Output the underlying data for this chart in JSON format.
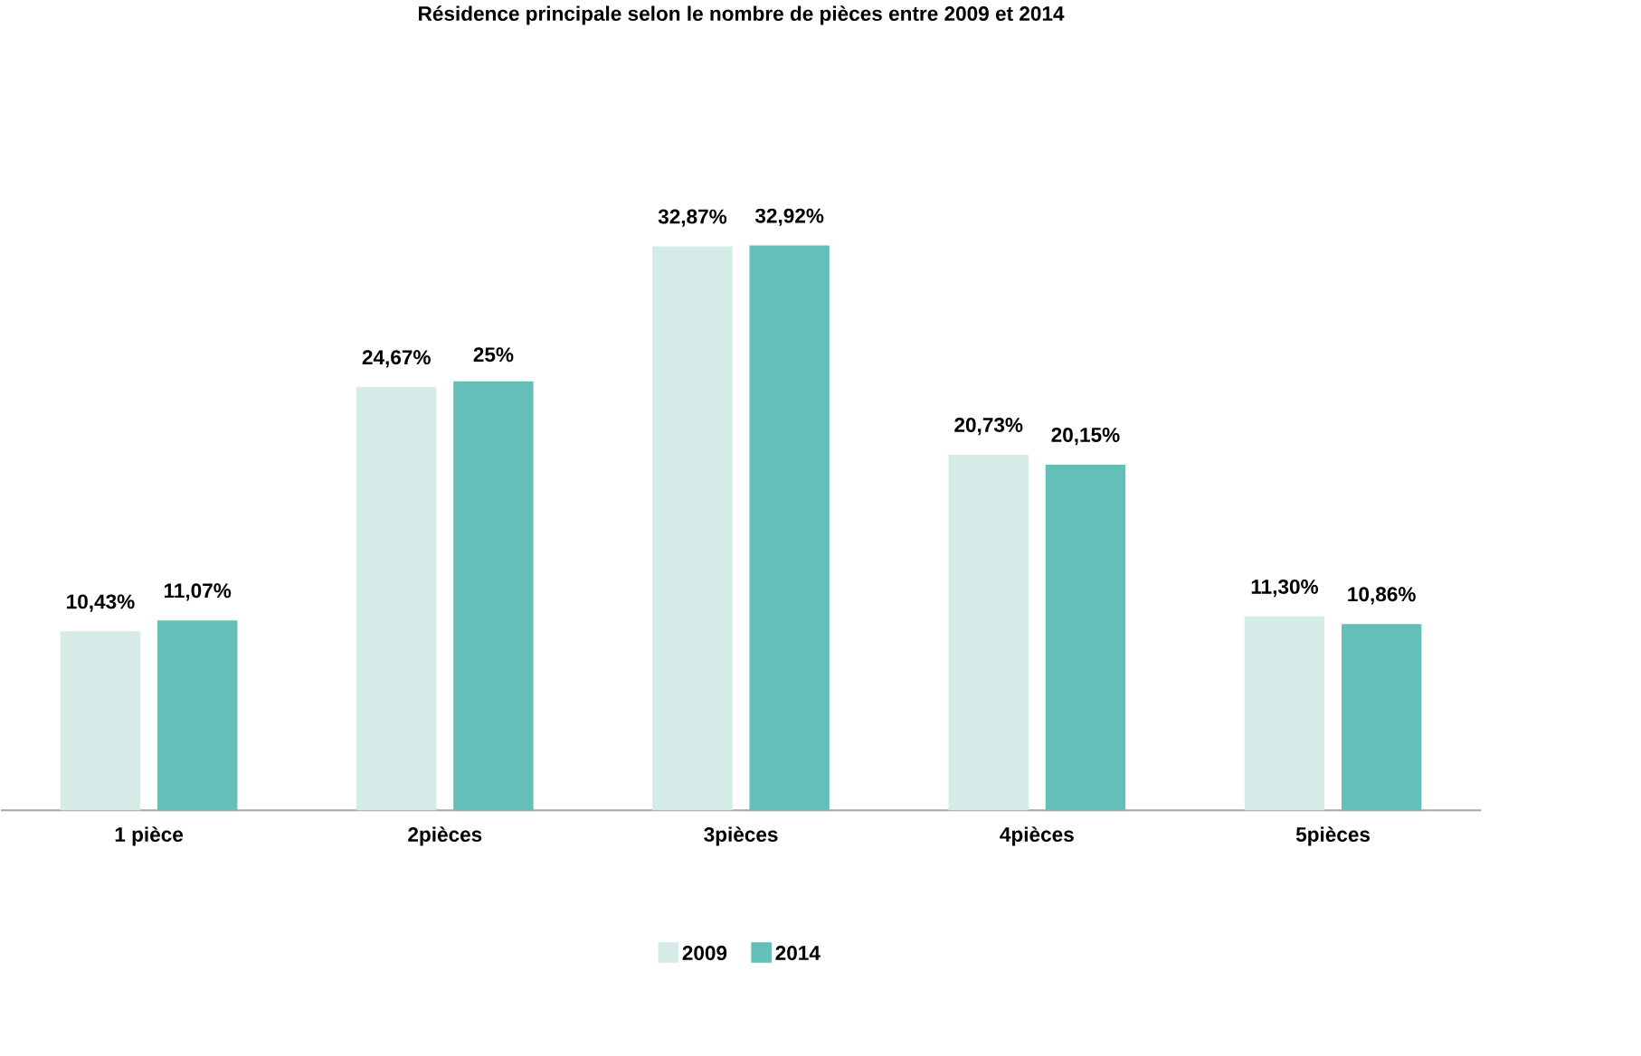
{
  "chart_data": {
    "type": "bar",
    "title": "Résidence principale selon le nombre de pièces entre 2009 et 2014",
    "categories": [
      "1 pièce",
      "2pièces",
      "3pièces",
      "4pièces",
      "5pièces"
    ],
    "series": [
      {
        "name": "2009",
        "color": "#d4ebe8",
        "values": [
          10.43,
          24.67,
          32.87,
          20.73,
          11.3
        ],
        "value_labels": [
          "10,43%",
          "24,67%",
          "32,87%",
          "20,73%",
          "11,30%"
        ]
      },
      {
        "name": "2014",
        "color": "#63bfb8",
        "values": [
          11.07,
          25,
          32.92,
          20.15,
          10.86
        ],
        "value_labels": [
          "11,07%",
          "25%",
          "32,92%",
          "20,15%",
          "10,86%"
        ]
      }
    ],
    "legend": "bottom"
  }
}
